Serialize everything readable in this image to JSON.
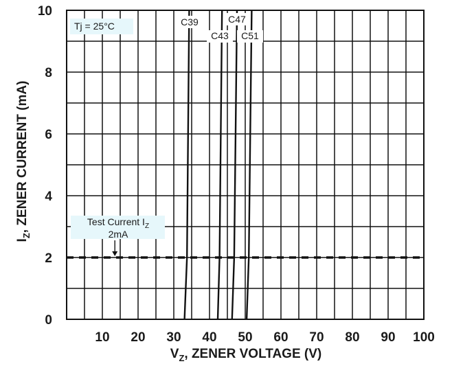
{
  "chart_data": {
    "type": "line",
    "title": "",
    "xlabel": {
      "main": "V",
      "sub": "Z",
      "rest": ", ZENER VOLTAGE (V)"
    },
    "ylabel": {
      "main": "I",
      "sub": "Z",
      "rest": ", ZENER CURRENT (mA)"
    },
    "xlim": [
      0,
      100
    ],
    "ylim": [
      0,
      10
    ],
    "x_ticks": [
      10,
      20,
      30,
      40,
      50,
      60,
      70,
      80,
      90,
      100
    ],
    "y_ticks": [
      0,
      2,
      4,
      6,
      8,
      10
    ],
    "x_grid_step": 5,
    "y_grid_step": 1,
    "grid": true,
    "annotations": {
      "temperature": "Tj = 25°C",
      "test_current_line1_main": "Test Current I",
      "test_current_line1_sub": "Z",
      "test_current_line2": "2mA",
      "test_current_value": 2,
      "arrow_x": 13.5
    },
    "series": [
      {
        "name": "C39",
        "x": [
          33.0,
          33.7,
          34.3
        ],
        "y": [
          0,
          2,
          10
        ]
      },
      {
        "name": "C43",
        "x": [
          42.3,
          42.8,
          43.5
        ],
        "y": [
          0,
          2,
          10
        ]
      },
      {
        "name": "C47",
        "x": [
          46.3,
          46.9,
          47.7
        ],
        "y": [
          0,
          2,
          10
        ]
      },
      {
        "name": "C51",
        "x": [
          50.4,
          51.0,
          51.8
        ],
        "y": [
          0,
          2,
          10
        ]
      }
    ]
  }
}
